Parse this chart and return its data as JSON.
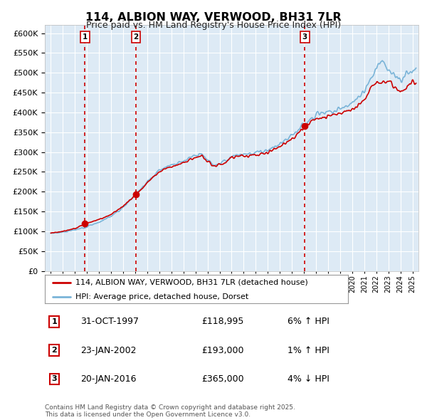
{
  "title": "114, ALBION WAY, VERWOOD, BH31 7LR",
  "subtitle": "Price paid vs. HM Land Registry's House Price Index (HPI)",
  "sale_labels": [
    "1",
    "2",
    "3"
  ],
  "sale_dates_approx": [
    1997.83,
    2002.07,
    2016.07
  ],
  "sale_prices": [
    118995,
    193000,
    365000
  ],
  "annotations": [
    {
      "num": "1",
      "date": "31-OCT-1997",
      "price": "£118,995",
      "change": "6% ↑ HPI"
    },
    {
      "num": "2",
      "date": "23-JAN-2002",
      "price": "£193,000",
      "change": "1% ↑ HPI"
    },
    {
      "num": "3",
      "date": "20-JAN-2016",
      "price": "£365,000",
      "change": "4% ↓ HPI"
    }
  ],
  "hpi_line_color": "#7ab4d8",
  "price_line_color": "#cc0000",
  "sale_dot_color": "#cc0000",
  "vline_color": "#cc0000",
  "plot_bg_color": "#ddeaf5",
  "grid_color": "#ffffff",
  "legend_label_price": "114, ALBION WAY, VERWOOD, BH31 7LR (detached house)",
  "legend_label_hpi": "HPI: Average price, detached house, Dorset",
  "footer": "Contains HM Land Registry data © Crown copyright and database right 2025.\nThis data is licensed under the Open Government Licence v3.0.",
  "ylim": [
    0,
    620000
  ],
  "yticks": [
    0,
    50000,
    100000,
    150000,
    200000,
    250000,
    300000,
    350000,
    400000,
    450000,
    500000,
    550000,
    600000
  ],
  "xlim": [
    1994.5,
    2025.5
  ]
}
